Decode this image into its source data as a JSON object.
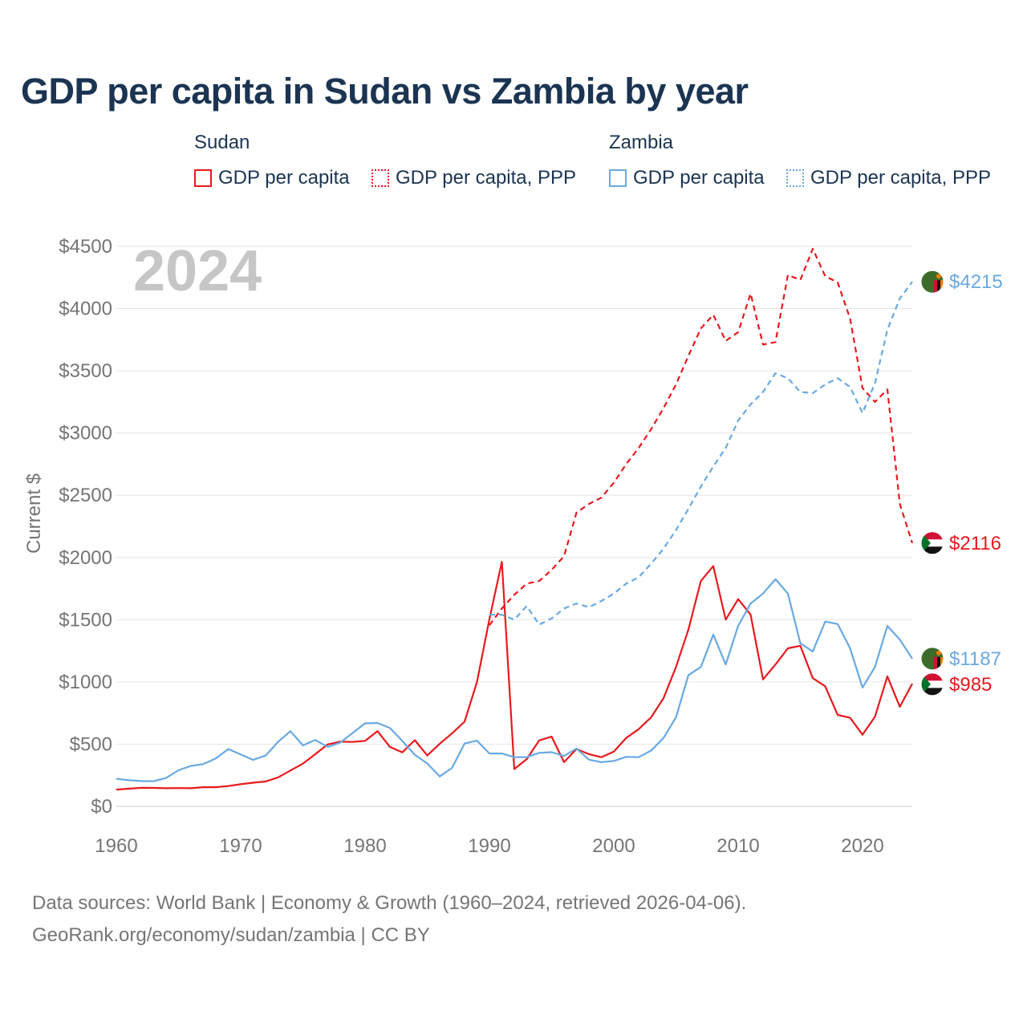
{
  "title": "GDP per capita in Sudan vs Zambia by year",
  "legend": {
    "groups": [
      {
        "name": "Sudan",
        "items": [
          "GDP per capita",
          "GDP per capita, PPP"
        ]
      },
      {
        "name": "Zambia",
        "items": [
          "GDP per capita",
          "GDP per capita, PPP"
        ]
      }
    ]
  },
  "footer": {
    "line1": "Data sources: World Bank | Economy & Growth (1960–2024, retrieved 2026-04-06).",
    "line2": "GeoRank.org/economy/sudan/zambia | CC BY"
  },
  "chart_data": {
    "type": "line",
    "year_label": "2024",
    "ylabel": "Current $",
    "xlim": [
      1960,
      2024
    ],
    "ylim": [
      0,
      4500
    ],
    "x_ticks": [
      1960,
      1970,
      1980,
      1990,
      2000,
      2010,
      2020
    ],
    "y_ticks": [
      {
        "value": 0,
        "label": "$0"
      },
      {
        "value": 500,
        "label": "$500"
      },
      {
        "value": 1000,
        "label": "$1000"
      },
      {
        "value": 1500,
        "label": "$1500"
      },
      {
        "value": 2000,
        "label": "$2000"
      },
      {
        "value": 2500,
        "label": "$2500"
      },
      {
        "value": 3000,
        "label": "$3000"
      },
      {
        "value": 3500,
        "label": "$3500"
      },
      {
        "value": 4000,
        "label": "$4000"
      },
      {
        "value": 4500,
        "label": "$4500"
      }
    ],
    "colors": {
      "sudan": "#e8191d",
      "zambia": "#68a9e3"
    },
    "series": [
      {
        "name": "Sudan GDP per capita",
        "country": "sudan",
        "style": "solid",
        "end_label": "$985",
        "end_value": 985,
        "points": [
          [
            1960,
            135
          ],
          [
            1961,
            142
          ],
          [
            1962,
            149
          ],
          [
            1963,
            148
          ],
          [
            1964,
            146
          ],
          [
            1965,
            147
          ],
          [
            1966,
            146
          ],
          [
            1967,
            154
          ],
          [
            1968,
            154
          ],
          [
            1969,
            163
          ],
          [
            1970,
            178
          ],
          [
            1971,
            190
          ],
          [
            1972,
            200
          ],
          [
            1973,
            233
          ],
          [
            1974,
            288
          ],
          [
            1975,
            343
          ],
          [
            1976,
            420
          ],
          [
            1977,
            498
          ],
          [
            1978,
            520
          ],
          [
            1979,
            518
          ],
          [
            1980,
            526
          ],
          [
            1981,
            604
          ],
          [
            1982,
            478
          ],
          [
            1983,
            434
          ],
          [
            1984,
            532
          ],
          [
            1985,
            409
          ],
          [
            1986,
            502
          ],
          [
            1987,
            587
          ],
          [
            1988,
            680
          ],
          [
            1989,
            1000
          ],
          [
            1990,
            1505
          ],
          [
            1991,
            1965
          ],
          [
            1992,
            300
          ],
          [
            1993,
            380
          ],
          [
            1994,
            530
          ],
          [
            1995,
            560
          ],
          [
            1996,
            355
          ],
          [
            1997,
            460
          ],
          [
            1998,
            420
          ],
          [
            1999,
            395
          ],
          [
            2000,
            440
          ],
          [
            2001,
            550
          ],
          [
            2002,
            620
          ],
          [
            2003,
            715
          ],
          [
            2004,
            870
          ],
          [
            2005,
            1120
          ],
          [
            2006,
            1420
          ],
          [
            2007,
            1810
          ],
          [
            2008,
            1930
          ],
          [
            2009,
            1500
          ],
          [
            2010,
            1665
          ],
          [
            2011,
            1540
          ],
          [
            2012,
            1020
          ],
          [
            2013,
            1140
          ],
          [
            2014,
            1270
          ],
          [
            2015,
            1290
          ],
          [
            2016,
            1030
          ],
          [
            2017,
            965
          ],
          [
            2018,
            735
          ],
          [
            2019,
            712
          ],
          [
            2020,
            576
          ],
          [
            2021,
            720
          ],
          [
            2022,
            1045
          ],
          [
            2023,
            800
          ],
          [
            2024,
            985
          ]
        ]
      },
      {
        "name": "Sudan GDP per capita, PPP",
        "country": "sudan",
        "style": "dashed",
        "end_label": "$2116",
        "end_value": 2116,
        "points": [
          [
            1990,
            1455
          ],
          [
            1991,
            1590
          ],
          [
            1992,
            1700
          ],
          [
            1993,
            1790
          ],
          [
            1994,
            1810
          ],
          [
            1995,
            1900
          ],
          [
            1996,
            2010
          ],
          [
            1997,
            2360
          ],
          [
            1998,
            2430
          ],
          [
            1999,
            2480
          ],
          [
            2000,
            2600
          ],
          [
            2001,
            2750
          ],
          [
            2002,
            2880
          ],
          [
            2003,
            3030
          ],
          [
            2004,
            3200
          ],
          [
            2005,
            3390
          ],
          [
            2006,
            3620
          ],
          [
            2007,
            3840
          ],
          [
            2008,
            3950
          ],
          [
            2009,
            3740
          ],
          [
            2010,
            3810
          ],
          [
            2011,
            4120
          ],
          [
            2012,
            3710
          ],
          [
            2013,
            3730
          ],
          [
            2014,
            4270
          ],
          [
            2015,
            4230
          ],
          [
            2016,
            4480
          ],
          [
            2017,
            4260
          ],
          [
            2018,
            4210
          ],
          [
            2019,
            3920
          ],
          [
            2020,
            3360
          ],
          [
            2021,
            3250
          ],
          [
            2022,
            3350
          ],
          [
            2023,
            2430
          ],
          [
            2024,
            2116
          ]
        ]
      },
      {
        "name": "Zambia GDP per capita",
        "country": "zambia",
        "style": "solid",
        "end_label": "$1187",
        "end_value": 1187,
        "points": [
          [
            1960,
            222
          ],
          [
            1961,
            210
          ],
          [
            1962,
            203
          ],
          [
            1963,
            202
          ],
          [
            1964,
            228
          ],
          [
            1965,
            290
          ],
          [
            1966,
            325
          ],
          [
            1967,
            340
          ],
          [
            1968,
            385
          ],
          [
            1969,
            460
          ],
          [
            1970,
            418
          ],
          [
            1971,
            373
          ],
          [
            1972,
            408
          ],
          [
            1973,
            518
          ],
          [
            1974,
            604
          ],
          [
            1975,
            490
          ],
          [
            1976,
            533
          ],
          [
            1977,
            478
          ],
          [
            1978,
            512
          ],
          [
            1979,
            590
          ],
          [
            1980,
            667
          ],
          [
            1981,
            670
          ],
          [
            1982,
            630
          ],
          [
            1983,
            525
          ],
          [
            1984,
            415
          ],
          [
            1985,
            345
          ],
          [
            1986,
            240
          ],
          [
            1987,
            310
          ],
          [
            1988,
            505
          ],
          [
            1989,
            528
          ],
          [
            1990,
            425
          ],
          [
            1991,
            425
          ],
          [
            1992,
            395
          ],
          [
            1993,
            395
          ],
          [
            1994,
            430
          ],
          [
            1995,
            435
          ],
          [
            1996,
            405
          ],
          [
            1997,
            465
          ],
          [
            1998,
            375
          ],
          [
            1999,
            355
          ],
          [
            2000,
            365
          ],
          [
            2001,
            398
          ],
          [
            2002,
            395
          ],
          [
            2003,
            448
          ],
          [
            2004,
            550
          ],
          [
            2005,
            715
          ],
          [
            2006,
            1055
          ],
          [
            2007,
            1120
          ],
          [
            2008,
            1380
          ],
          [
            2009,
            1140
          ],
          [
            2010,
            1450
          ],
          [
            2011,
            1630
          ],
          [
            2012,
            1710
          ],
          [
            2013,
            1825
          ],
          [
            2014,
            1710
          ],
          [
            2015,
            1310
          ],
          [
            2016,
            1245
          ],
          [
            2017,
            1485
          ],
          [
            2018,
            1465
          ],
          [
            2019,
            1270
          ],
          [
            2020,
            955
          ],
          [
            2021,
            1120
          ],
          [
            2022,
            1450
          ],
          [
            2023,
            1340
          ],
          [
            2024,
            1187
          ]
        ]
      },
      {
        "name": "Zambia GDP per capita, PPP",
        "country": "zambia",
        "style": "dashed",
        "end_label": "$4215",
        "end_value": 4215,
        "points": [
          [
            1990,
            1540
          ],
          [
            1991,
            1540
          ],
          [
            1992,
            1500
          ],
          [
            1993,
            1610
          ],
          [
            1994,
            1460
          ],
          [
            1995,
            1510
          ],
          [
            1996,
            1590
          ],
          [
            1997,
            1630
          ],
          [
            1998,
            1600
          ],
          [
            1999,
            1650
          ],
          [
            2000,
            1710
          ],
          [
            2001,
            1790
          ],
          [
            2002,
            1840
          ],
          [
            2003,
            1950
          ],
          [
            2004,
            2070
          ],
          [
            2005,
            2220
          ],
          [
            2006,
            2390
          ],
          [
            2007,
            2570
          ],
          [
            2008,
            2730
          ],
          [
            2009,
            2880
          ],
          [
            2010,
            3100
          ],
          [
            2011,
            3230
          ],
          [
            2012,
            3330
          ],
          [
            2013,
            3480
          ],
          [
            2014,
            3440
          ],
          [
            2015,
            3330
          ],
          [
            2016,
            3320
          ],
          [
            2017,
            3390
          ],
          [
            2018,
            3440
          ],
          [
            2019,
            3370
          ],
          [
            2020,
            3160
          ],
          [
            2021,
            3400
          ],
          [
            2022,
            3830
          ],
          [
            2023,
            4080
          ],
          [
            2024,
            4215
          ]
        ]
      }
    ]
  }
}
